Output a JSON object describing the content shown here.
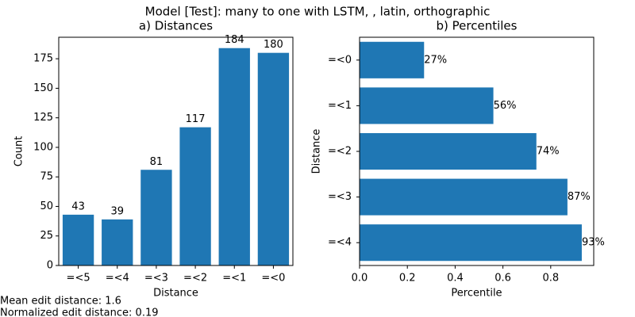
{
  "title": "Model [Test]: many to one with LSTM, , latin, orthographic",
  "notes": [
    "Mean edit distance: 1.6",
    "Normalized edit distance: 0.19"
  ],
  "chart_data": [
    {
      "type": "bar",
      "orientation": "vertical",
      "title": "a) Distances",
      "x_label": "Distance",
      "y_label": "Count",
      "categories": [
        "=<5",
        "=<4",
        "=<3",
        "=<2",
        "=<1",
        "=<0"
      ],
      "values": [
        43,
        39,
        81,
        117,
        184,
        180
      ],
      "color": "#1f77b4",
      "ylim": [
        0,
        193.2
      ],
      "yticks": [
        0,
        25,
        50,
        75,
        100,
        125,
        150,
        175
      ]
    },
    {
      "type": "bar",
      "orientation": "horizontal",
      "title": "b) Percentiles",
      "x_label": "Percentile",
      "y_label": "Distance",
      "categories": [
        "=<0",
        "=<1",
        "=<2",
        "=<3",
        "=<4"
      ],
      "values": [
        0.27,
        0.56,
        0.74,
        0.87,
        0.93
      ],
      "value_labels": [
        "27%",
        "56%",
        "74%",
        "87%",
        "93%"
      ],
      "color": "#1f77b4",
      "xlim": [
        0,
        0.98
      ],
      "xticks": [
        {
          "value": 0,
          "label": "0.0"
        },
        0.2,
        0.4,
        0.6,
        0.8
      ]
    }
  ]
}
